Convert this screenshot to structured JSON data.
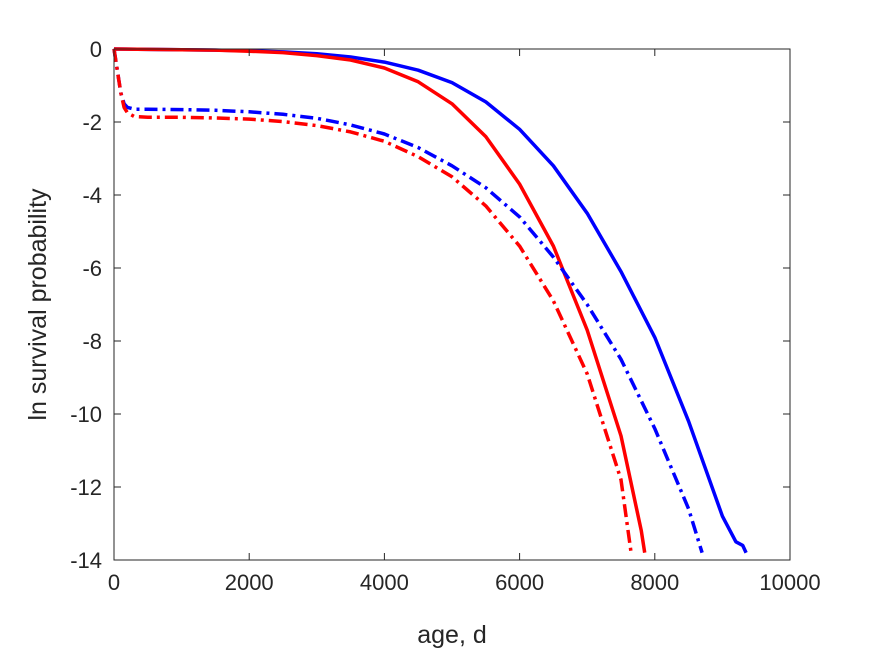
{
  "chart_data": {
    "type": "line",
    "xlabel": "age, d",
    "ylabel": "ln survival probability",
    "xlim": [
      0,
      10000
    ],
    "ylim": [
      -14,
      0
    ],
    "x_ticks": [
      0,
      2000,
      4000,
      6000,
      8000,
      10000
    ],
    "y_ticks": [
      0,
      -2,
      -4,
      -6,
      -8,
      -10,
      -12,
      -14
    ],
    "x_tick_labels": [
      "0",
      "2000",
      "4000",
      "6000",
      "8000",
      "10000"
    ],
    "y_tick_labels": [
      "0",
      "-2",
      "-4",
      "-6",
      "-8",
      "-10",
      "-12",
      "-14"
    ],
    "grid": false,
    "box": true,
    "series": [
      {
        "color": "#0000ff",
        "style": "solid",
        "x": [
          0,
          500,
          1000,
          1500,
          2000,
          2500,
          3000,
          3500,
          4000,
          4500,
          5000,
          5500,
          6000,
          6500,
          7000,
          7500,
          8000,
          8500,
          9000,
          9200,
          9300,
          9350
        ],
        "y": [
          0,
          -0.01,
          -0.02,
          -0.03,
          -0.05,
          -0.08,
          -0.13,
          -0.22,
          -0.36,
          -0.58,
          -0.92,
          -1.45,
          -2.2,
          -3.2,
          -4.5,
          -6.1,
          -7.9,
          -10.2,
          -12.8,
          -13.5,
          -13.6,
          -13.8
        ]
      },
      {
        "color": "#ff0000",
        "style": "solid",
        "x": [
          0,
          500,
          1000,
          1500,
          2000,
          2500,
          3000,
          3500,
          4000,
          4500,
          5000,
          5500,
          6000,
          6500,
          7000,
          7500,
          7800,
          7850
        ],
        "y": [
          0,
          -0.01,
          -0.02,
          -0.03,
          -0.06,
          -0.1,
          -0.18,
          -0.3,
          -0.52,
          -0.9,
          -1.5,
          -2.4,
          -3.7,
          -5.4,
          -7.7,
          -10.6,
          -13.2,
          -13.8
        ]
      },
      {
        "color": "#0000ff",
        "style": "dashdot",
        "x": [
          0,
          50,
          100,
          150,
          200,
          300,
          500,
          1000,
          1500,
          2000,
          2500,
          3000,
          3500,
          4000,
          4500,
          5000,
          5500,
          6000,
          6500,
          7000,
          7500,
          8000,
          8500,
          8700
        ],
        "y": [
          0,
          -0.6,
          -1.2,
          -1.5,
          -1.6,
          -1.65,
          -1.65,
          -1.66,
          -1.68,
          -1.72,
          -1.79,
          -1.9,
          -2.08,
          -2.33,
          -2.7,
          -3.2,
          -3.8,
          -4.6,
          -5.7,
          -7.0,
          -8.5,
          -10.4,
          -12.6,
          -13.8
        ]
      },
      {
        "color": "#ff0000",
        "style": "dashdot",
        "x": [
          0,
          50,
          100,
          150,
          200,
          300,
          500,
          1000,
          1500,
          2000,
          2500,
          3000,
          3500,
          4000,
          4500,
          5000,
          5500,
          6000,
          6500,
          7000,
          7500,
          7650
        ],
        "y": [
          0,
          -0.6,
          -1.2,
          -1.6,
          -1.75,
          -1.85,
          -1.87,
          -1.87,
          -1.89,
          -1.92,
          -1.99,
          -2.1,
          -2.27,
          -2.53,
          -2.95,
          -3.5,
          -4.3,
          -5.4,
          -6.9,
          -8.9,
          -11.8,
          -13.8
        ]
      }
    ]
  }
}
